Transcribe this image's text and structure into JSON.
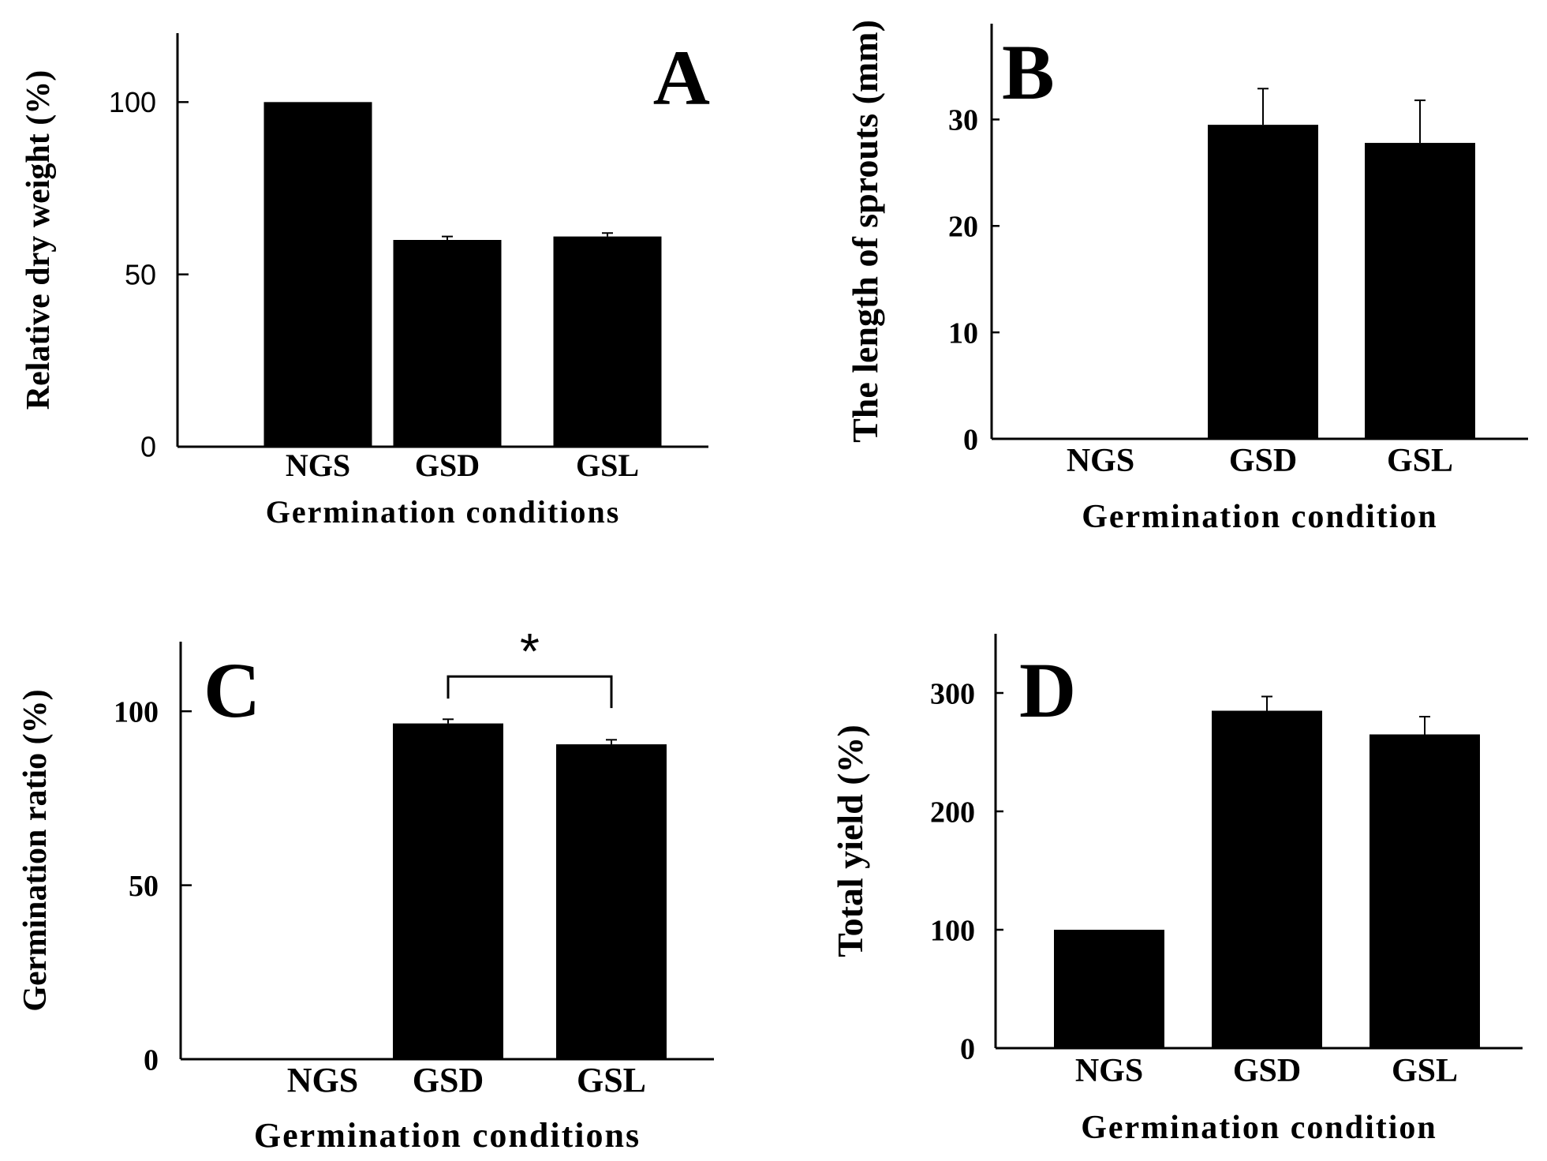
{
  "figure": {
    "colors": {
      "bar": "#000000",
      "axis": "#000000",
      "background": "#ffffff"
    }
  },
  "chart_data": [
    {
      "panel": "A",
      "type": "bar",
      "categories": [
        "NGS",
        "GSD",
        "GSL"
      ],
      "values": [
        100,
        60,
        61
      ],
      "errors": [
        0,
        1,
        1
      ],
      "xlabel": "Germination conditions",
      "ylabel": "Relative dry weight (%)",
      "ylim": [
        0,
        120
      ],
      "yticks": [
        0,
        50,
        100
      ],
      "yticklabels": [
        "0",
        "50",
        "100"
      ],
      "annotations": []
    },
    {
      "panel": "B",
      "type": "bar",
      "categories": [
        "NGS",
        "GSD",
        "GSL"
      ],
      "values": [
        0,
        29.5,
        27.8
      ],
      "errors": [
        0,
        3.4,
        4.0
      ],
      "xlabel": "Germination condition",
      "ylabel": "The length of sprouts (mm)",
      "ylim": [
        0,
        39
      ],
      "yticks": [
        0,
        10,
        20,
        30
      ],
      "yticklabels": [
        "0",
        "10",
        "20",
        "30"
      ],
      "annotations": []
    },
    {
      "panel": "C",
      "type": "bar",
      "categories": [
        "NGS",
        "GSD",
        "GSL"
      ],
      "values": [
        0,
        96.5,
        90.5
      ],
      "errors": [
        0,
        1.2,
        1.3
      ],
      "xlabel": "Germination conditions",
      "ylabel": "Germination ratio (%)",
      "ylim": [
        0,
        120
      ],
      "yticks": [
        0,
        50,
        100
      ],
      "yticklabels": [
        "0",
        "50",
        "100"
      ],
      "annotations": [
        {
          "type": "significance",
          "between": [
            "GSD",
            "GSL"
          ],
          "text": "*"
        }
      ]
    },
    {
      "panel": "D",
      "type": "bar",
      "categories": [
        "NGS",
        "GSD",
        "GSL"
      ],
      "values": [
        100,
        285,
        265
      ],
      "errors": [
        0,
        12,
        15
      ],
      "xlabel": "Germination condition",
      "ylabel": "Total yield (%)",
      "ylim": [
        0,
        350
      ],
      "yticks": [
        0,
        100,
        200,
        300
      ],
      "yticklabels": [
        "0",
        "100",
        "200",
        "300"
      ],
      "annotations": []
    }
  ]
}
